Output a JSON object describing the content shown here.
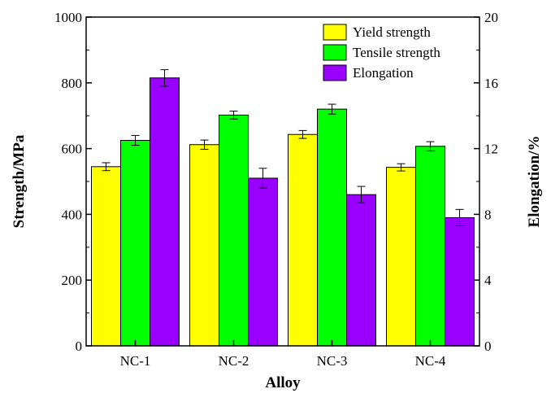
{
  "chart_data": {
    "type": "bar",
    "categories": [
      "NC-1",
      "NC-2",
      "NC-3",
      "NC-4"
    ],
    "xlabel": "Alloy",
    "ylabel": "Strength/MPa",
    "y2label": "Elongation/%",
    "ylim": [
      0,
      1000
    ],
    "y2lim": [
      0,
      20
    ],
    "yticks": [
      0,
      200,
      400,
      600,
      800,
      1000
    ],
    "y2ticks": [
      0,
      4,
      8,
      12,
      16,
      20
    ],
    "legend_position": "top-right",
    "grid": false,
    "series": [
      {
        "name": "Yield strength",
        "axis": "left",
        "color": "#ffff00",
        "values": [
          545,
          612,
          643,
          543
        ],
        "errors": [
          12,
          14,
          12,
          11
        ]
      },
      {
        "name": "Tensile strength",
        "axis": "left",
        "color": "#00ff00",
        "values": [
          625,
          702,
          720,
          607
        ],
        "errors": [
          15,
          12,
          15,
          14
        ]
      },
      {
        "name": "Elongation",
        "axis": "right",
        "color": "#9900ff",
        "values": [
          16.3,
          10.2,
          9.2,
          7.8
        ],
        "errors": [
          0.5,
          0.6,
          0.5,
          0.5
        ]
      }
    ]
  }
}
